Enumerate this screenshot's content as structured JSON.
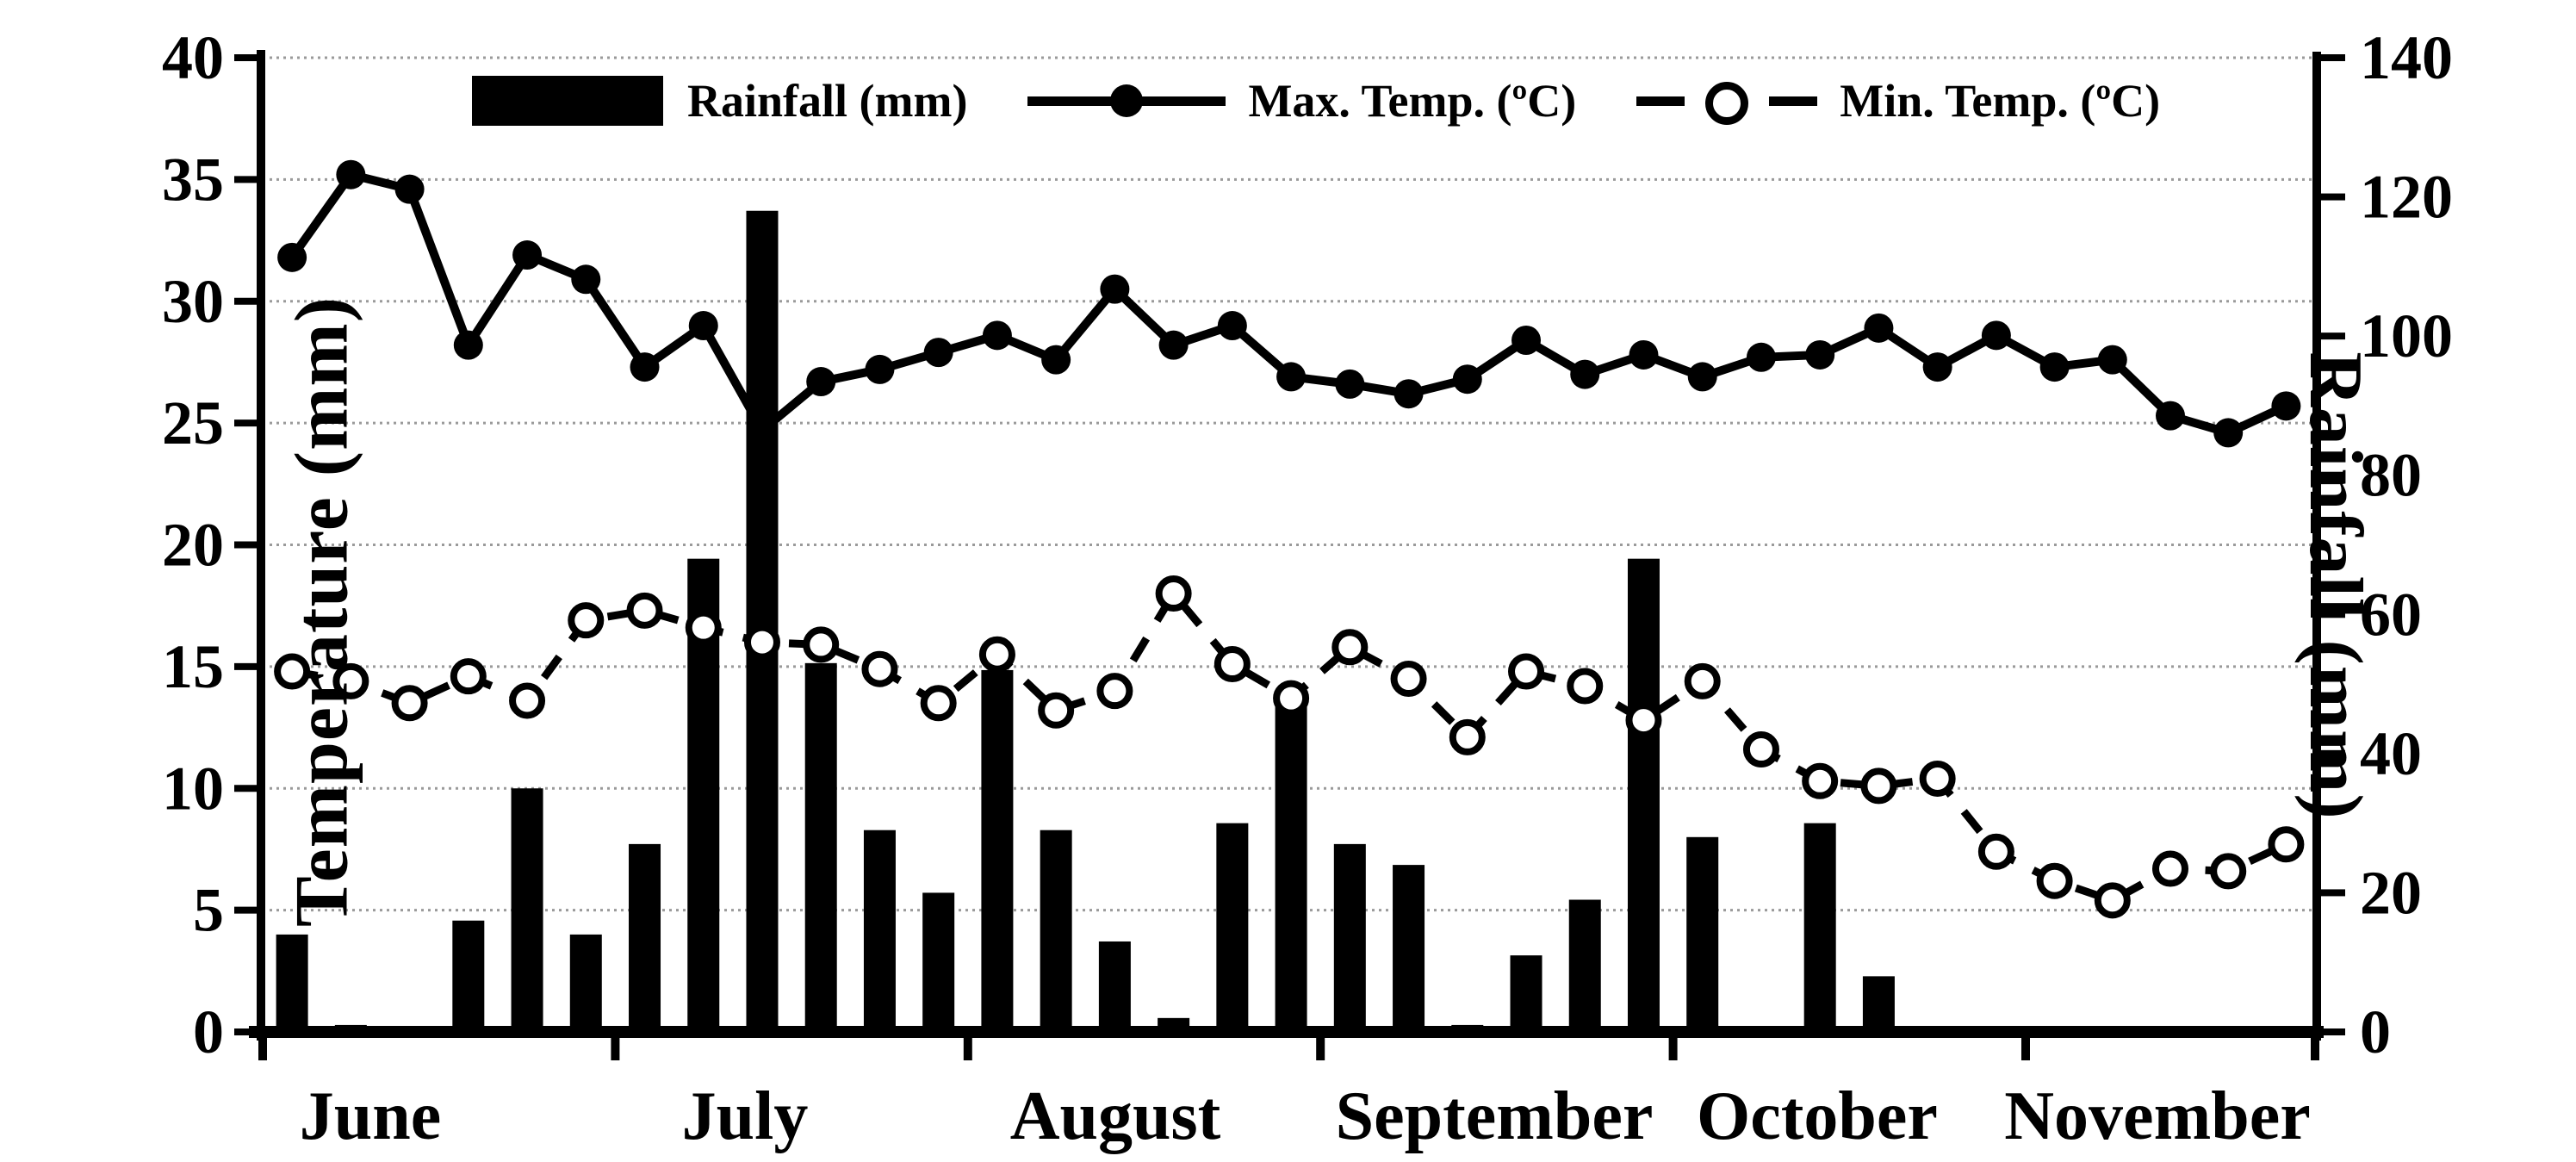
{
  "figure": {
    "background": "#ffffff",
    "ink_color": "#000000",
    "grid_color": "#9a9a9a"
  },
  "left_axis": {
    "title": "Temperature (mm)",
    "tick_labels": [
      "40",
      "35",
      "30",
      "25",
      "20",
      "15",
      "10",
      "5",
      "0"
    ],
    "min": 0,
    "max": 40
  },
  "right_axis": {
    "title": "Rainfall (mm)",
    "tick_labels": [
      "140",
      "120",
      "100",
      "80",
      "60",
      "40",
      "20",
      "0"
    ],
    "min": 0,
    "max": 140
  },
  "legend": {
    "rainfall_label": "Rainfall (mm)",
    "max_temp_label": "Max. Temp. (ºC)",
    "min_temp_label": "Min. Temp. (ºC)"
  },
  "chart_data": {
    "type": "combo (bar + line + dashed line)",
    "months": [
      "June",
      "July",
      "August",
      "September",
      "October",
      "November"
    ],
    "points_per_month": [
      6,
      6,
      6,
      6,
      6,
      5
    ],
    "grid": "horizontal dotted lines every 5 °C (left axis)",
    "legend_position": "top inside plot",
    "left_axis_range": [
      0,
      40
    ],
    "right_axis_range": [
      0,
      140
    ],
    "series": [
      {
        "name": "Rainfall (mm)",
        "axis": "right",
        "style": "black vertical bars",
        "values": [
          14,
          1,
          0,
          16,
          35,
          14,
          27,
          68,
          118,
          53,
          29,
          20,
          52,
          29,
          13,
          2,
          30,
          48,
          27,
          24,
          1,
          11,
          19,
          68,
          28,
          0,
          30,
          8,
          0,
          0,
          0,
          0,
          0,
          0,
          0
        ]
      },
      {
        "name": "Max. Temp. (ºC)",
        "axis": "left",
        "style": "solid black line, filled circle markers",
        "values": [
          31.8,
          35.2,
          34.6,
          28.2,
          31.9,
          30.9,
          27.3,
          29.0,
          24.7,
          26.7,
          27.2,
          27.9,
          28.6,
          27.6,
          30.5,
          28.2,
          29.0,
          26.9,
          26.6,
          26.2,
          26.8,
          28.4,
          27.0,
          27.8,
          26.9,
          27.7,
          27.8,
          28.9,
          27.3,
          28.6,
          27.3,
          27.6,
          25.3,
          24.6,
          25.7
        ]
      },
      {
        "name": "Min. Temp. (ºC)",
        "axis": "left",
        "style": "dashed black line, open circle markers",
        "values": [
          14.8,
          14.4,
          13.5,
          14.6,
          13.6,
          16.9,
          17.3,
          16.6,
          16.0,
          15.9,
          14.9,
          13.5,
          15.5,
          13.2,
          14.0,
          18.0,
          15.1,
          13.7,
          15.8,
          14.5,
          12.1,
          14.8,
          14.2,
          12.8,
          14.4,
          11.6,
          10.3,
          10.1,
          10.4,
          7.4,
          6.2,
          5.4,
          6.7,
          6.6,
          7.7
        ]
      }
    ]
  }
}
